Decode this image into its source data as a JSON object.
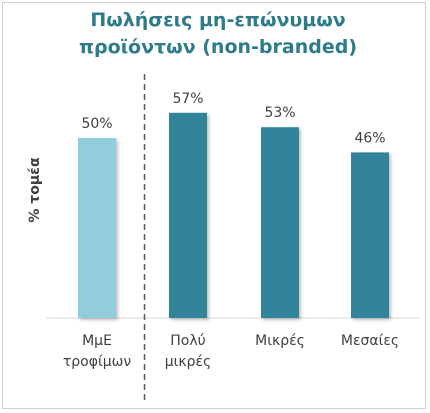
{
  "chart_data": {
    "type": "bar",
    "title_lines": [
      "Πωλήσεις μη-επώνυμων",
      "προϊόντων (non-branded)"
    ],
    "ylabel": "% τομέα",
    "xlabel": "",
    "ylim": [
      0,
      60
    ],
    "grid": false,
    "legend": "none",
    "categories": [
      [
        "ΜμΕ",
        "τροφίμων"
      ],
      [
        "Πολύ",
        "μικρές"
      ],
      [
        "Μικρές"
      ],
      [
        "Μεσαίες"
      ]
    ],
    "values": [
      50,
      57,
      53,
      46
    ],
    "value_labels": [
      "50%",
      "57%",
      "53%",
      "46%"
    ],
    "bar_colors": [
      "#92cddc",
      "#31849b",
      "#31849b",
      "#31849b"
    ],
    "separator_after_index": 0,
    "title_color": "#2e7b89",
    "text_color": "#404040"
  }
}
